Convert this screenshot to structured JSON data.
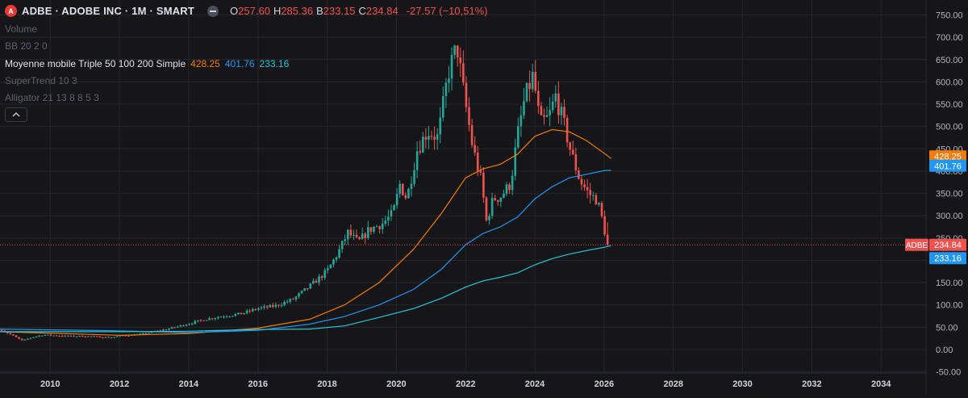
{
  "header": {
    "logo_letter": "A",
    "title": "ADBE · ADOBE INC · 1M · SMART",
    "ohlc": [
      {
        "label": "O",
        "value": "257.60"
      },
      {
        "label": "H",
        "value": "285.36"
      },
      {
        "label": "B",
        "value": "233.15"
      },
      {
        "label": "C",
        "value": "234.84"
      }
    ],
    "change": "-27.57 (−10,51%)"
  },
  "indicators": {
    "volume": "Volume",
    "bb": "BB 20 2 0",
    "ma_title": "Moyenne mobile Triple 50 100 200 Simple",
    "ma_values": [
      "428.25",
      "401.76",
      "233.16"
    ],
    "supertrend": "SuperTrend 10 3",
    "alligator": "Alligator 21 13 8 8 5 3"
  },
  "collapse_icon": "chevron-up-icon",
  "colors": {
    "background": "#161619",
    "up": "#26a69a",
    "down": "#ef5350",
    "ma50": "#f57c00",
    "ma100": "#2196f3",
    "ma200": "#26c6da",
    "grid": "#24262c"
  },
  "price_labels": {
    "ma50": "428.25",
    "ma100": "401.76",
    "symbol": "ADBE",
    "last": "234.84",
    "ma200": "233.16"
  },
  "chart_data": {
    "type": "candlestick",
    "x_ticks": [
      "2010",
      "2012",
      "2014",
      "2016",
      "2018",
      "2020",
      "2022",
      "2024",
      "2026",
      "2028",
      "2030",
      "2032",
      "2034"
    ],
    "y_ticks": [
      "750.00",
      "700.00",
      "650.00",
      "600.00",
      "550.00",
      "500.00",
      "450.00",
      "400.00",
      "350.00",
      "300.00",
      "250.00",
      "200.00",
      "150.00",
      "100.00",
      "50.00",
      "0.00",
      "-50.00"
    ],
    "ylim": [
      -50,
      750
    ],
    "xlim": [
      2008.55,
      2035.3
    ],
    "grid": true,
    "last_price": 234.84,
    "price_anchors": [
      [
        2008.6,
        44
      ],
      [
        2008.9,
        32
      ],
      [
        2009.2,
        20
      ],
      [
        2009.5,
        28
      ],
      [
        2009.8,
        33
      ],
      [
        2010.0,
        32
      ],
      [
        2010.5,
        30
      ],
      [
        2011.0,
        30
      ],
      [
        2011.5,
        28
      ],
      [
        2011.8,
        27
      ],
      [
        2012.0,
        31
      ],
      [
        2012.5,
        33
      ],
      [
        2013.0,
        40
      ],
      [
        2013.5,
        48
      ],
      [
        2014.0,
        58
      ],
      [
        2014.5,
        68
      ],
      [
        2015.0,
        75
      ],
      [
        2015.5,
        80
      ],
      [
        2016.0,
        92
      ],
      [
        2016.5,
        98
      ],
      [
        2017.0,
        112
      ],
      [
        2017.5,
        142
      ],
      [
        2018.0,
        176
      ],
      [
        2018.3,
        215
      ],
      [
        2018.6,
        262
      ],
      [
        2018.9,
        240
      ],
      [
        2019.2,
        268
      ],
      [
        2019.6,
        283
      ],
      [
        2019.9,
        305
      ],
      [
        2020.1,
        370
      ],
      [
        2020.3,
        338
      ],
      [
        2020.6,
        448
      ],
      [
        2020.9,
        490
      ],
      [
        2021.2,
        475
      ],
      [
        2021.5,
        620
      ],
      [
        2021.75,
        680
      ],
      [
        2021.95,
        572
      ],
      [
        2022.2,
        455
      ],
      [
        2022.45,
        378
      ],
      [
        2022.6,
        288
      ],
      [
        2022.8,
        338
      ],
      [
        2023.0,
        342
      ],
      [
        2023.3,
        372
      ],
      [
        2023.5,
        480
      ],
      [
        2023.7,
        560
      ],
      [
        2023.95,
        615
      ],
      [
        2024.15,
        505
      ],
      [
        2024.4,
        520
      ],
      [
        2024.6,
        568
      ],
      [
        2024.85,
        502
      ],
      [
        2025.05,
        440
      ],
      [
        2025.3,
        380
      ],
      [
        2025.55,
        350
      ],
      [
        2025.8,
        335
      ],
      [
        2025.95,
        290
      ],
      [
        2026.1,
        234.84
      ]
    ],
    "series": [
      {
        "name": "SMA 50",
        "values": [
          [
            2008.55,
            40
          ],
          [
            2012.0,
            32
          ],
          [
            2014.0,
            36
          ],
          [
            2016.0,
            48
          ],
          [
            2017.5,
            68
          ],
          [
            2018.5,
            100
          ],
          [
            2019.5,
            150
          ],
          [
            2020.5,
            225
          ],
          [
            2021.3,
            305
          ],
          [
            2022.0,
            385
          ],
          [
            2022.5,
            405
          ],
          [
            2023.0,
            415
          ],
          [
            2023.5,
            438
          ],
          [
            2024.0,
            478
          ],
          [
            2024.5,
            493
          ],
          [
            2025.0,
            488
          ],
          [
            2025.5,
            468
          ],
          [
            2026.0,
            440
          ],
          [
            2026.2,
            428.25
          ]
        ]
      },
      {
        "name": "SMA 100",
        "values": [
          [
            2008.55,
            46
          ],
          [
            2012.0,
            42
          ],
          [
            2014.0,
            38
          ],
          [
            2016.0,
            43
          ],
          [
            2017.5,
            57
          ],
          [
            2018.5,
            74
          ],
          [
            2019.5,
            100
          ],
          [
            2020.5,
            135
          ],
          [
            2021.3,
            180
          ],
          [
            2022.0,
            235
          ],
          [
            2022.5,
            260
          ],
          [
            2023.0,
            275
          ],
          [
            2023.5,
            297
          ],
          [
            2024.0,
            338
          ],
          [
            2024.5,
            365
          ],
          [
            2025.0,
            385
          ],
          [
            2025.5,
            393
          ],
          [
            2026.0,
            401
          ],
          [
            2026.2,
            401.76
          ]
        ]
      },
      {
        "name": "SMA 200",
        "values": [
          [
            2008.55,
            40
          ],
          [
            2012.0,
            40
          ],
          [
            2014.0,
            41
          ],
          [
            2016.0,
            45
          ],
          [
            2017.5,
            46
          ],
          [
            2018.5,
            53
          ],
          [
            2019.5,
            72
          ],
          [
            2020.5,
            92
          ],
          [
            2021.3,
            115
          ],
          [
            2022.0,
            140
          ],
          [
            2022.5,
            154
          ],
          [
            2023.0,
            162
          ],
          [
            2023.5,
            172
          ],
          [
            2024.0,
            190
          ],
          [
            2024.5,
            204
          ],
          [
            2025.0,
            214
          ],
          [
            2025.5,
            222
          ],
          [
            2026.0,
            229
          ],
          [
            2026.2,
            233.16
          ]
        ]
      }
    ]
  }
}
